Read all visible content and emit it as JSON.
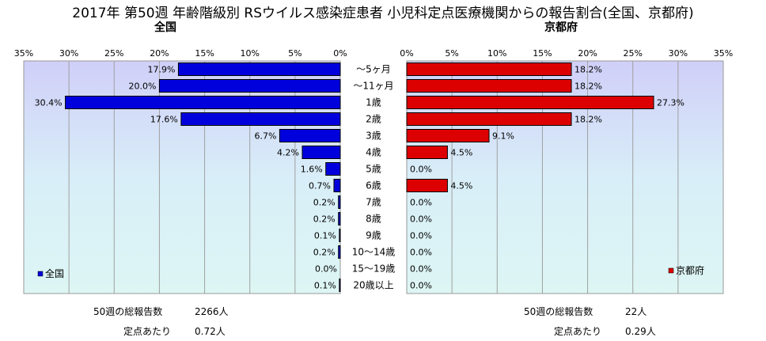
{
  "title": "2017年 第50週 年齢階級別 RSウイルス感染症患者 小児科定点医療機関からの報告割合(全国、京都府)",
  "chart_data": {
    "type": "bar",
    "orientation": "horizontal-butterfly",
    "categories": [
      "～5ヶ月",
      "～11ヶ月",
      "1歳",
      "2歳",
      "3歳",
      "4歳",
      "5歳",
      "6歳",
      "7歳",
      "8歳",
      "9歳",
      "10～14歳",
      "15～19歳",
      "20歳以上"
    ],
    "xlim": [
      0,
      35
    ],
    "ticks": [
      0,
      5,
      10,
      15,
      20,
      25,
      30,
      35
    ],
    "tick_labels": [
      "0%",
      "5%",
      "10%",
      "15%",
      "20%",
      "25%",
      "30%",
      "35%"
    ],
    "series": [
      {
        "name": "全国",
        "panel_title": "全国",
        "color": "#0000dd",
        "values": [
          17.9,
          20.0,
          30.4,
          17.6,
          6.7,
          4.2,
          1.6,
          0.7,
          0.2,
          0.2,
          0.1,
          0.2,
          0.0,
          0.1
        ],
        "data_labels": [
          "17.9%",
          "20.0%",
          "30.4%",
          "17.6%",
          "6.7%",
          "4.2%",
          "1.6%",
          "0.7%",
          "0.2%",
          "0.2%",
          "0.1%",
          "0.2%",
          "0.0%",
          "0.1%"
        ],
        "legend_label": "全国"
      },
      {
        "name": "京都府",
        "panel_title": "京都府",
        "color": "#dd0000",
        "values": [
          18.2,
          18.2,
          27.3,
          18.2,
          9.1,
          4.5,
          0.0,
          4.5,
          0.0,
          0.0,
          0.0,
          0.0,
          0.0,
          0.0
        ],
        "data_labels": [
          "18.2%",
          "18.2%",
          "27.3%",
          "18.2%",
          "9.1%",
          "4.5%",
          "0.0%",
          "4.5%",
          "0.0%",
          "0.0%",
          "0.0%",
          "0.0%",
          "0.0%",
          "0.0%"
        ],
        "legend_label": "京都府"
      }
    ],
    "grid": true,
    "legend": "bottom-left / bottom-right"
  },
  "footer": {
    "left": {
      "total_label": "50週の総報告数",
      "total_value": "2266人",
      "per_label": "定点あたり",
      "per_value": "0.72人"
    },
    "right": {
      "total_label": "50週の総報告数",
      "total_value": "22人",
      "per_label": "定点あたり",
      "per_value": "0.29人"
    }
  }
}
